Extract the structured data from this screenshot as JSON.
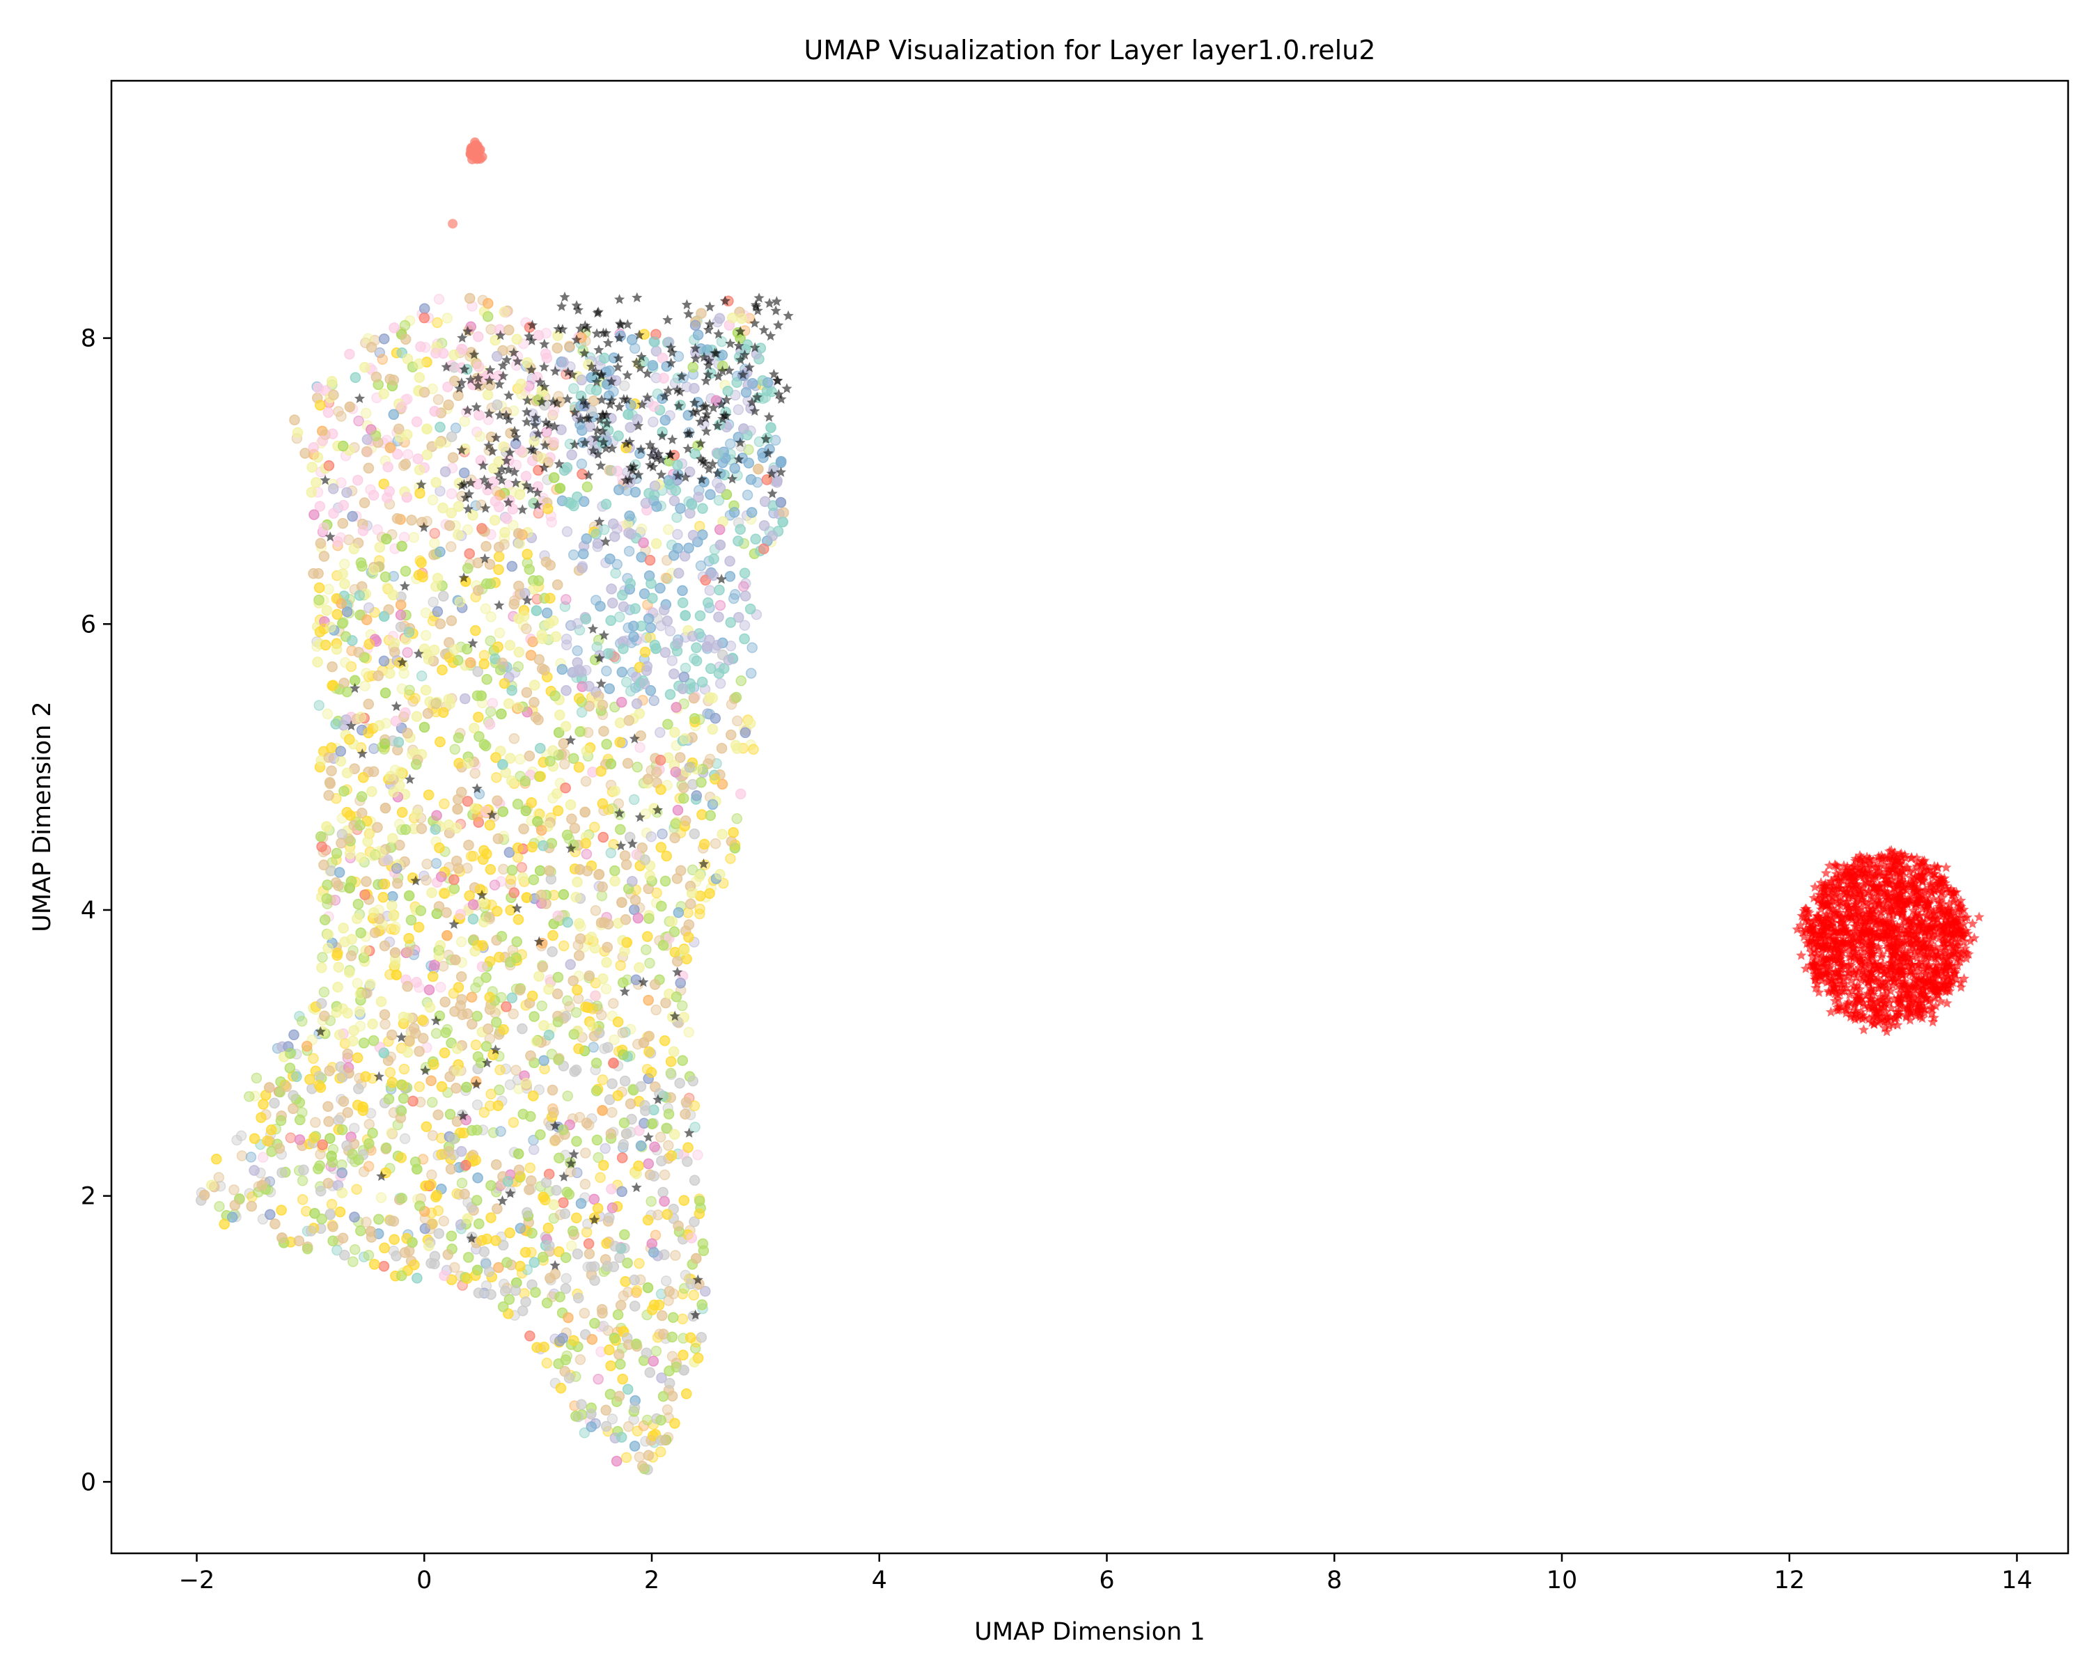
{
  "chart_data": {
    "type": "scatter",
    "title": "UMAP Visualization for Layer layer1.0.relu2",
    "xlabel": "UMAP Dimension 1",
    "ylabel": "UMAP Dimension 2",
    "xlim": [
      -2.75,
      14.45
    ],
    "ylim": [
      -0.5,
      9.8
    ],
    "xticks": [
      -2,
      0,
      2,
      4,
      6,
      8,
      10,
      12,
      14
    ],
    "xtick_labels": [
      "−2",
      "0",
      "2",
      "4",
      "6",
      "8",
      "10",
      "12",
      "14"
    ],
    "yticks": [
      0,
      2,
      4,
      6,
      8
    ],
    "ytick_labels": [
      "0",
      "2",
      "4",
      "6",
      "8"
    ],
    "grid": false,
    "legend": "none",
    "series": [
      {
        "marker": "circle",
        "color_palette": [
          "#f2f2a0",
          "#8dd3c7",
          "#e5c494",
          "#b3de69",
          "#fccde5",
          "#ffd92f",
          "#bebada",
          "#80b1d3",
          "#fb8072",
          "#cccccc",
          "#a6d854",
          "#e78ac3",
          "#8da0cb",
          "#fdb462"
        ],
        "opacity": 0.45,
        "region_polygon": [
          [
            -2.0,
            2.0
          ],
          [
            -1.5,
            2.8
          ],
          [
            -0.9,
            3.5
          ],
          [
            -1.0,
            7.0
          ],
          [
            -1.2,
            7.5
          ],
          [
            -0.5,
            8.0
          ],
          [
            0.3,
            8.35
          ],
          [
            1.0,
            8.1
          ],
          [
            2.0,
            8.05
          ],
          [
            2.8,
            8.3
          ],
          [
            3.1,
            7.6
          ],
          [
            3.2,
            6.8
          ],
          [
            2.9,
            6.0
          ],
          [
            2.9,
            5.0
          ],
          [
            2.7,
            4.3
          ],
          [
            2.3,
            3.6
          ],
          [
            2.4,
            2.4
          ],
          [
            2.5,
            1.0
          ],
          [
            2.0,
            0.0
          ],
          [
            1.5,
            0.2
          ],
          [
            1.0,
            0.9
          ],
          [
            0.5,
            1.3
          ],
          [
            0.0,
            1.4
          ],
          [
            -0.3,
            1.35
          ],
          [
            -1.0,
            1.6
          ],
          [
            -1.8,
            1.8
          ]
        ],
        "color_zones": [
          {
            "description": "upper-left band",
            "x_range": [
              -1.2,
              1.2
            ],
            "y_range": [
              6.5,
              8.3
            ],
            "dominant": [
              "#f2f2a0",
              "#e5c494",
              "#fccde5"
            ]
          },
          {
            "description": "upper-right band",
            "x_range": [
              1.2,
              3.2
            ],
            "y_range": [
              5.5,
              8.0
            ],
            "dominant": [
              "#8dd3c7",
              "#bebada",
              "#80b1d3"
            ]
          },
          {
            "description": "middle region",
            "x_range": [
              -1.0,
              3.0
            ],
            "y_range": [
              3.0,
              6.5
            ],
            "dominant": [
              "#f2f2a0",
              "#e5c494",
              "#ffd92f",
              "#b3de69"
            ]
          },
          {
            "description": "lower region",
            "x_range": [
              -2.0,
              2.6
            ],
            "y_range": [
              0.0,
              3.0
            ],
            "dominant": [
              "#e5c494",
              "#ffd92f",
              "#b3de69",
              "#cccccc"
            ]
          }
        ]
      },
      {
        "marker": "star",
        "color": "#000000",
        "opacity": 0.55,
        "description": "dark stars concentrated along the top edge of the main cluster",
        "center": [
          1.9,
          7.7
        ],
        "spread": [
          0.9,
          0.45
        ]
      },
      {
        "marker": "circle",
        "color": "#fb8072",
        "opacity": 0.8,
        "description": "small salmon cluster near the top",
        "center": [
          0.45,
          9.3
        ],
        "spread": [
          0.05,
          0.06
        ]
      },
      {
        "marker": "star",
        "color": "#ff0000",
        "opacity": 0.6,
        "description": "isolated red cluster",
        "center": [
          12.85,
          3.8
        ],
        "spread": [
          0.4,
          0.33
        ]
      }
    ]
  }
}
